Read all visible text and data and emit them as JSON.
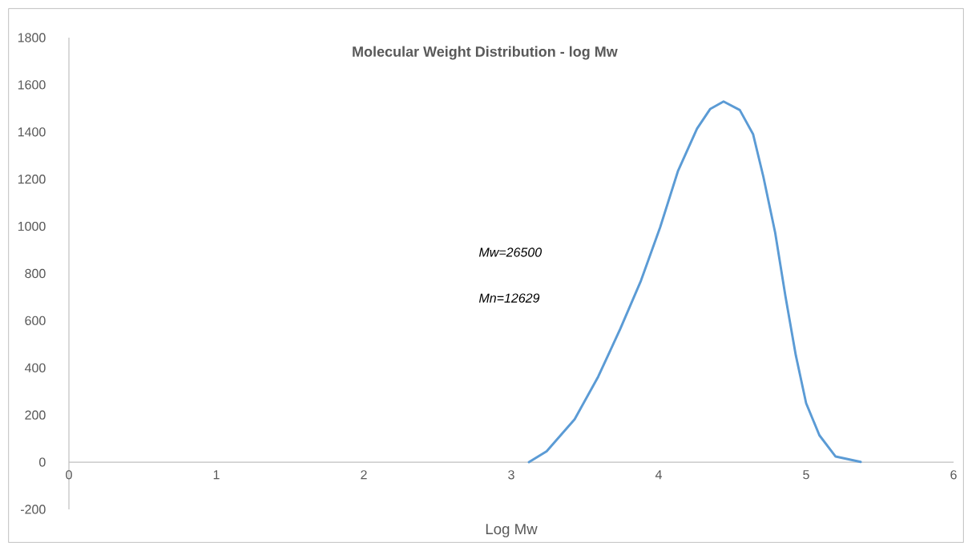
{
  "chart_data": {
    "type": "line",
    "title": "Molecular Weight Distribution - log Mw",
    "xlabel": "Log Mw",
    "annotations": [
      "Mw=26500",
      "Mn=12629"
    ],
    "series": [
      {
        "color": "#5b9bd5",
        "x": [
          3.12,
          3.24,
          3.43,
          3.59,
          3.74,
          3.88,
          4.01,
          4.13,
          4.26,
          4.35,
          4.44,
          4.55,
          4.64,
          4.71,
          4.79,
          4.86,
          4.93,
          5.0,
          5.09,
          5.2,
          5.37
        ],
        "values": [
          0,
          46,
          182,
          363,
          566,
          770,
          996,
          1233,
          1414,
          1498,
          1529,
          1493,
          1391,
          1210,
          973,
          702,
          453,
          250,
          114,
          24,
          1
        ]
      }
    ],
    "xlim": [
      0,
      6
    ],
    "xticks": [
      0,
      1,
      2,
      3,
      4,
      5,
      6
    ],
    "ylim": [
      -200,
      1800
    ],
    "yticks": [
      -200,
      0,
      200,
      400,
      600,
      800,
      1000,
      1200,
      1400,
      1600,
      1800
    ],
    "marker": "none",
    "line_style": "solid"
  }
}
